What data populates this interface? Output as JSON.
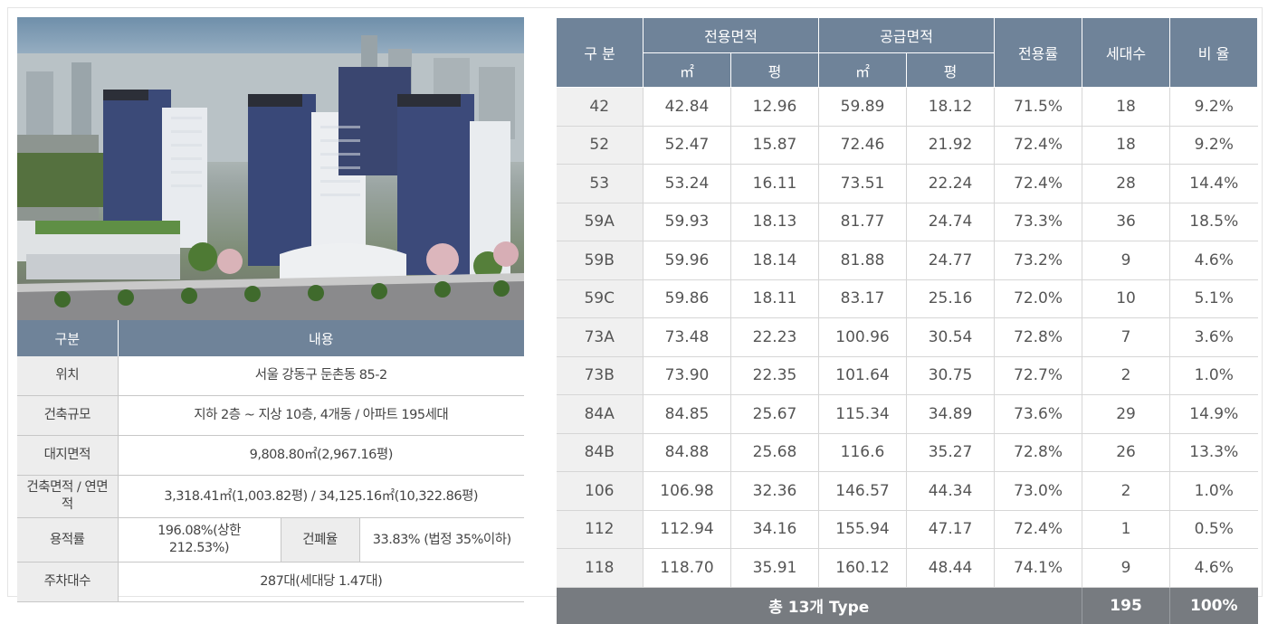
{
  "overview": {
    "headers": {
      "category": "구분",
      "content": "내용"
    },
    "rows": [
      {
        "label": "위치",
        "value": "서울 강동구 둔촌동 85-2"
      },
      {
        "label": "건축규모",
        "value": "지하 2층 ~ 지상 10층, 4개동 / 아파트 195세대"
      },
      {
        "label": "대지면적",
        "value": "9,808.80㎡(2,967.16평)"
      },
      {
        "label": "건축면적 / 연면적",
        "value": "3,318.41㎡(1,003.82평) / 34,125.16㎡(10,322.86평)"
      }
    ],
    "ratio_row": {
      "label": "용적률",
      "value": "196.08%(상한 212.53%)",
      "label2": "건폐율",
      "value2": "33.83% (법정 35%이하)"
    },
    "parking": {
      "label": "주차대수",
      "value": "287대(세대당 1.47대)"
    }
  },
  "units_table": {
    "headers": {
      "category": "구 분",
      "exclusive_area": "전용면적",
      "supply_area": "공급면적",
      "exclusive_rate": "전용률",
      "households": "세대수",
      "share": "비 율",
      "sqm": "㎡",
      "pyeong": "평"
    },
    "rows": [
      [
        "42",
        "42.84",
        "12.96",
        "59.89",
        "18.12",
        "71.5%",
        "18",
        "9.2%"
      ],
      [
        "52",
        "52.47",
        "15.87",
        "72.46",
        "21.92",
        "72.4%",
        "18",
        "9.2%"
      ],
      [
        "53",
        "53.24",
        "16.11",
        "73.51",
        "22.24",
        "72.4%",
        "28",
        "14.4%"
      ],
      [
        "59A",
        "59.93",
        "18.13",
        "81.77",
        "24.74",
        "73.3%",
        "36",
        "18.5%"
      ],
      [
        "59B",
        "59.96",
        "18.14",
        "81.88",
        "24.77",
        "73.2%",
        "9",
        "4.6%"
      ],
      [
        "59C",
        "59.86",
        "18.11",
        "83.17",
        "25.16",
        "72.0%",
        "10",
        "5.1%"
      ],
      [
        "73A",
        "73.48",
        "22.23",
        "100.96",
        "30.54",
        "72.8%",
        "7",
        "3.6%"
      ],
      [
        "73B",
        "73.90",
        "22.35",
        "101.64",
        "30.75",
        "72.7%",
        "2",
        "1.0%"
      ],
      [
        "84A",
        "84.85",
        "25.67",
        "115.34",
        "34.89",
        "73.6%",
        "29",
        "14.9%"
      ],
      [
        "84B",
        "84.88",
        "25.68",
        "116.6",
        "35.27",
        "72.8%",
        "26",
        "13.3%"
      ],
      [
        "106",
        "106.98",
        "32.36",
        "146.57",
        "44.34",
        "73.0%",
        "2",
        "1.0%"
      ],
      [
        "112",
        "112.94",
        "34.16",
        "155.94",
        "47.17",
        "72.4%",
        "1",
        "0.5%"
      ],
      [
        "118",
        "118.70",
        "35.91",
        "160.12",
        "48.44",
        "74.1%",
        "9",
        "4.6%"
      ]
    ],
    "total": {
      "label": "총 13개 Type",
      "households": "195",
      "share": "100%"
    }
  },
  "colors": {
    "header_bg": "#6f8399",
    "total_bg": "#777b80",
    "label_bg": "#ededed"
  }
}
